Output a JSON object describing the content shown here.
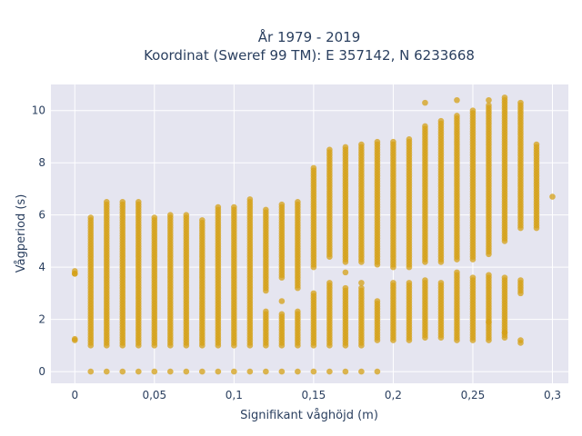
{
  "chart_data": {
    "type": "scatter",
    "title_line1": "År 1979 - 2019",
    "title_line2": "Koordinat (Sweref 99 TM): E 357142, N 6233668",
    "xlabel": "Signifikant våghöjd (m)",
    "ylabel": "Vågperiod (s)",
    "xlim": [
      -0.015,
      0.31
    ],
    "ylim": [
      -0.45,
      11
    ],
    "xticks": [
      0,
      0.05,
      0.1,
      0.15,
      0.2,
      0.25,
      0.3
    ],
    "xtick_labels": [
      "0",
      "0,05",
      "0,1",
      "0,15",
      "0,2",
      "0,25",
      "0,3"
    ],
    "yticks": [
      0,
      2,
      4,
      6,
      8,
      10
    ],
    "ytick_labels": [
      "0",
      "2",
      "4",
      "6",
      "8",
      "10"
    ],
    "marker_color": "#d4a017",
    "background_color": "#e5e5f0",
    "grid": true,
    "columns": [
      {
        "x": 0.0,
        "ranges": [
          [
            3.75,
            3.85
          ],
          [
            1.2,
            1.25
          ]
        ]
      },
      {
        "x": 0.01,
        "ranges": [
          [
            0,
            0
          ],
          [
            1.0,
            5.9
          ]
        ]
      },
      {
        "x": 0.02,
        "ranges": [
          [
            0,
            0
          ],
          [
            1.0,
            6.5
          ]
        ]
      },
      {
        "x": 0.03,
        "ranges": [
          [
            0,
            0
          ],
          [
            1.0,
            6.5
          ]
        ]
      },
      {
        "x": 0.04,
        "ranges": [
          [
            0,
            0
          ],
          [
            1.0,
            6.5
          ]
        ]
      },
      {
        "x": 0.05,
        "ranges": [
          [
            0,
            0
          ],
          [
            1.0,
            5.9
          ]
        ]
      },
      {
        "x": 0.06,
        "ranges": [
          [
            0,
            0
          ],
          [
            1.0,
            6.0
          ]
        ]
      },
      {
        "x": 0.07,
        "ranges": [
          [
            0,
            0
          ],
          [
            1.0,
            6.0
          ]
        ]
      },
      {
        "x": 0.08,
        "ranges": [
          [
            0,
            0
          ],
          [
            1.0,
            5.8
          ]
        ]
      },
      {
        "x": 0.09,
        "ranges": [
          [
            0,
            0
          ],
          [
            1.0,
            6.3
          ]
        ]
      },
      {
        "x": 0.1,
        "ranges": [
          [
            0,
            0
          ],
          [
            1.0,
            6.3
          ]
        ]
      },
      {
        "x": 0.11,
        "ranges": [
          [
            0,
            0
          ],
          [
            1.0,
            6.6
          ]
        ]
      },
      {
        "x": 0.12,
        "ranges": [
          [
            0,
            0
          ],
          [
            1.0,
            2.3
          ],
          [
            3.1,
            6.2
          ]
        ]
      },
      {
        "x": 0.13,
        "ranges": [
          [
            0,
            0
          ],
          [
            1.0,
            2.2
          ],
          [
            3.6,
            6.4
          ]
        ]
      },
      {
        "x": 0.14,
        "ranges": [
          [
            0,
            0
          ],
          [
            1.0,
            2.3
          ],
          [
            3.2,
            6.5
          ]
        ]
      },
      {
        "x": 0.15,
        "ranges": [
          [
            0,
            0
          ],
          [
            1.0,
            3.0
          ],
          [
            4.0,
            7.8
          ]
        ]
      },
      {
        "x": 0.16,
        "ranges": [
          [
            0,
            0
          ],
          [
            1.0,
            3.4
          ],
          [
            4.4,
            8.5
          ]
        ]
      },
      {
        "x": 0.17,
        "ranges": [
          [
            0,
            0
          ],
          [
            1.0,
            3.2
          ],
          [
            4.2,
            8.6
          ]
        ]
      },
      {
        "x": 0.18,
        "ranges": [
          [
            0,
            0
          ],
          [
            1.0,
            3.2
          ],
          [
            4.2,
            8.7
          ]
        ]
      },
      {
        "x": 0.19,
        "ranges": [
          [
            0,
            0
          ],
          [
            1.2,
            2.7
          ],
          [
            4.1,
            8.8
          ]
        ]
      },
      {
        "x": 0.2,
        "ranges": [
          [
            1.2,
            3.4
          ],
          [
            4.0,
            8.8
          ]
        ]
      },
      {
        "x": 0.21,
        "ranges": [
          [
            1.2,
            3.4
          ],
          [
            4.0,
            8.9
          ]
        ]
      },
      {
        "x": 0.22,
        "ranges": [
          [
            1.3,
            3.5
          ],
          [
            4.2,
            9.4
          ]
        ]
      },
      {
        "x": 0.23,
        "ranges": [
          [
            1.3,
            3.4
          ],
          [
            4.2,
            9.6
          ]
        ]
      },
      {
        "x": 0.24,
        "ranges": [
          [
            1.2,
            3.8
          ],
          [
            4.3,
            9.8
          ]
        ]
      },
      {
        "x": 0.25,
        "ranges": [
          [
            1.2,
            3.6
          ],
          [
            4.3,
            10.0
          ]
        ]
      },
      {
        "x": 0.26,
        "ranges": [
          [
            1.2,
            3.7
          ],
          [
            4.5,
            10.2
          ]
        ]
      },
      {
        "x": 0.27,
        "ranges": [
          [
            1.3,
            3.6
          ],
          [
            5.0,
            10.4
          ]
        ]
      },
      {
        "x": 0.28,
        "ranges": [
          [
            1.1,
            1.2
          ],
          [
            3.0,
            3.5
          ],
          [
            5.5,
            10.3
          ]
        ]
      },
      {
        "x": 0.29,
        "ranges": [
          [
            5.5,
            8.7
          ]
        ]
      },
      {
        "x": 0.3,
        "ranges": [
          [
            6.7,
            6.7
          ]
        ]
      }
    ],
    "outliers": [
      {
        "x": 0.0,
        "y": 3.75
      },
      {
        "x": 0.22,
        "y": 10.3
      },
      {
        "x": 0.24,
        "y": 10.4
      },
      {
        "x": 0.26,
        "y": 10.4
      },
      {
        "x": 0.27,
        "y": 10.5
      },
      {
        "x": 0.27,
        "y": 1.5
      },
      {
        "x": 0.26,
        "y": 1.9
      },
      {
        "x": 0.18,
        "y": 3.4
      },
      {
        "x": 0.17,
        "y": 3.8
      },
      {
        "x": 0.13,
        "y": 2.7
      }
    ]
  }
}
